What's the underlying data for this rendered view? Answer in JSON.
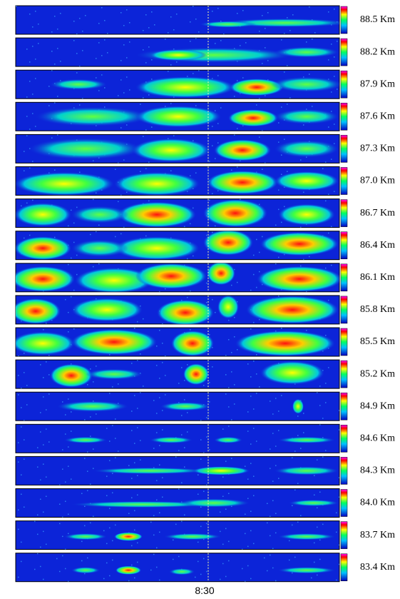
{
  "panels": [
    {
      "altitude": "88.5 Km"
    },
    {
      "altitude": "88.2 Km"
    },
    {
      "altitude": "87.9 Km"
    },
    {
      "altitude": "87.6 Km"
    },
    {
      "altitude": "87.3 Km"
    },
    {
      "altitude": "87.0 Km"
    },
    {
      "altitude": "86.7 Km"
    },
    {
      "altitude": "86.4 Km"
    },
    {
      "altitude": "86.1 Km"
    },
    {
      "altitude": "85.8 Km"
    },
    {
      "altitude": "85.5 Km"
    },
    {
      "altitude": "85.2 Km"
    },
    {
      "altitude": "84.9 Km"
    },
    {
      "altitude": "84.6 Km"
    },
    {
      "altitude": "84.3 Km"
    },
    {
      "altitude": "84.0 Km"
    },
    {
      "altitude": "83.7 Km"
    },
    {
      "altitude": "83.4 Km"
    }
  ],
  "time_label": "8:30"
}
